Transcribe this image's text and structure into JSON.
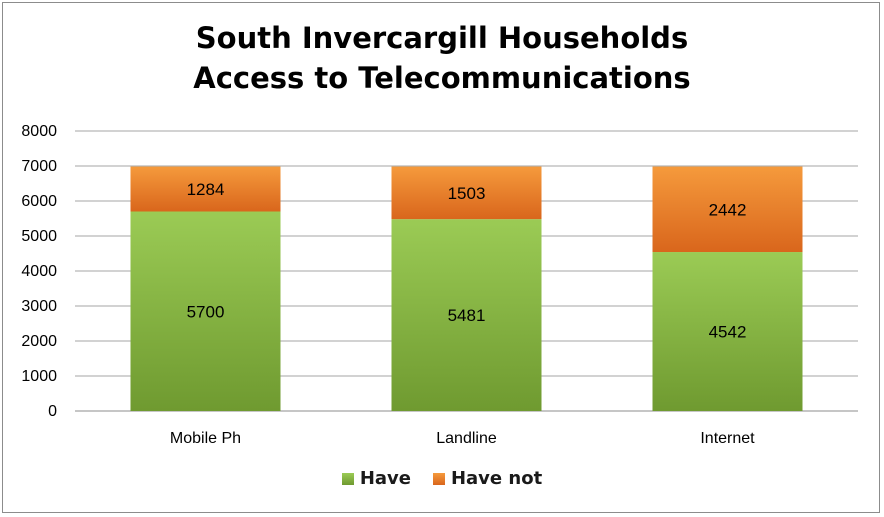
{
  "chart_data": {
    "type": "bar",
    "stacked": true,
    "title_lines": [
      "South Invercargill Households",
      "Access to Telecommunications"
    ],
    "categories": [
      "Mobile Ph",
      "Landline",
      "Internet"
    ],
    "series": [
      {
        "name": "Have",
        "values": [
          5700,
          5481,
          4542
        ],
        "color": "#8cbc45"
      },
      {
        "name": "Have not",
        "values": [
          1284,
          1503,
          2442
        ],
        "color": "#f08a2c"
      }
    ],
    "ylim": [
      0,
      8000
    ],
    "yticks": [
      "0",
      "1000",
      "2000",
      "3000",
      "4000",
      "5000",
      "6000",
      "7000",
      "8000"
    ],
    "grid": true,
    "legend_position": "bottom"
  }
}
